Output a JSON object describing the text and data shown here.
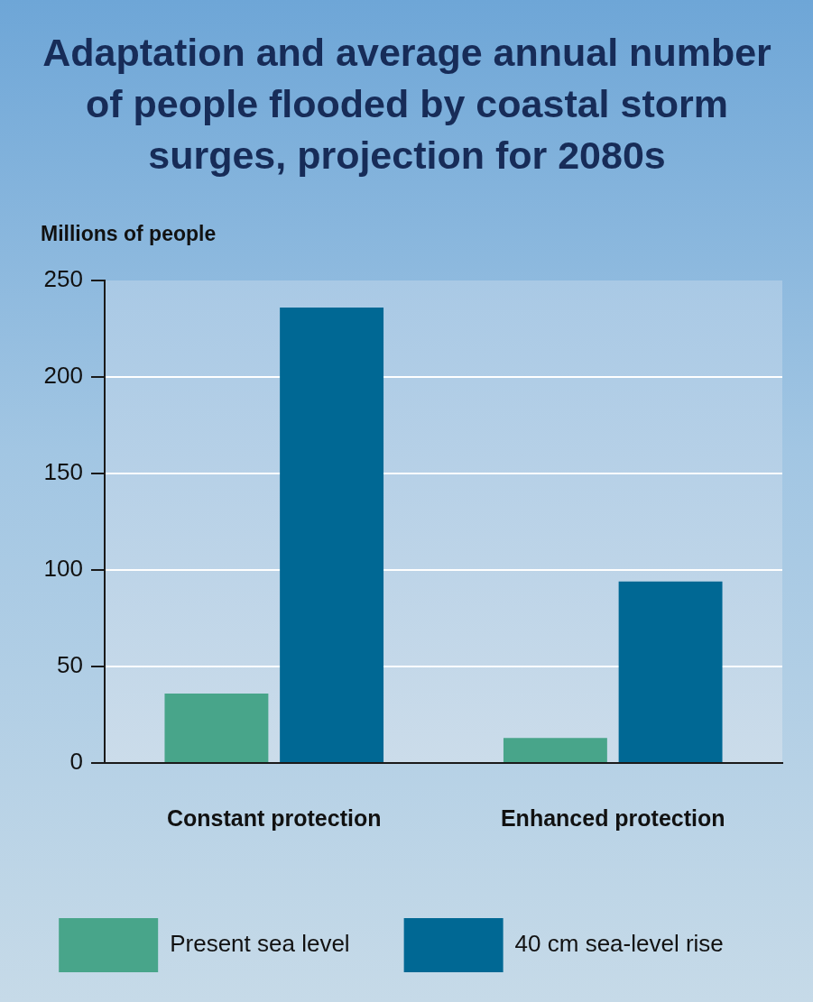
{
  "chart_data": {
    "type": "bar",
    "title": "Adaptation and average annual number of people flooded by coastal storm surges, projection for 2080s",
    "ylabel": "Millions of people",
    "categories": [
      "Constant protection",
      "Enhanced protection"
    ],
    "series": [
      {
        "name": "Present sea level",
        "color": "#48a58a",
        "values": [
          36,
          13
        ]
      },
      {
        "name": "40 cm sea-level rise",
        "color": "#006894",
        "values": [
          236,
          94
        ]
      }
    ],
    "ylim": [
      0,
      250
    ],
    "yticks": [
      0,
      50,
      100,
      150,
      200,
      250
    ],
    "grid": "y",
    "legend": "bottom"
  }
}
